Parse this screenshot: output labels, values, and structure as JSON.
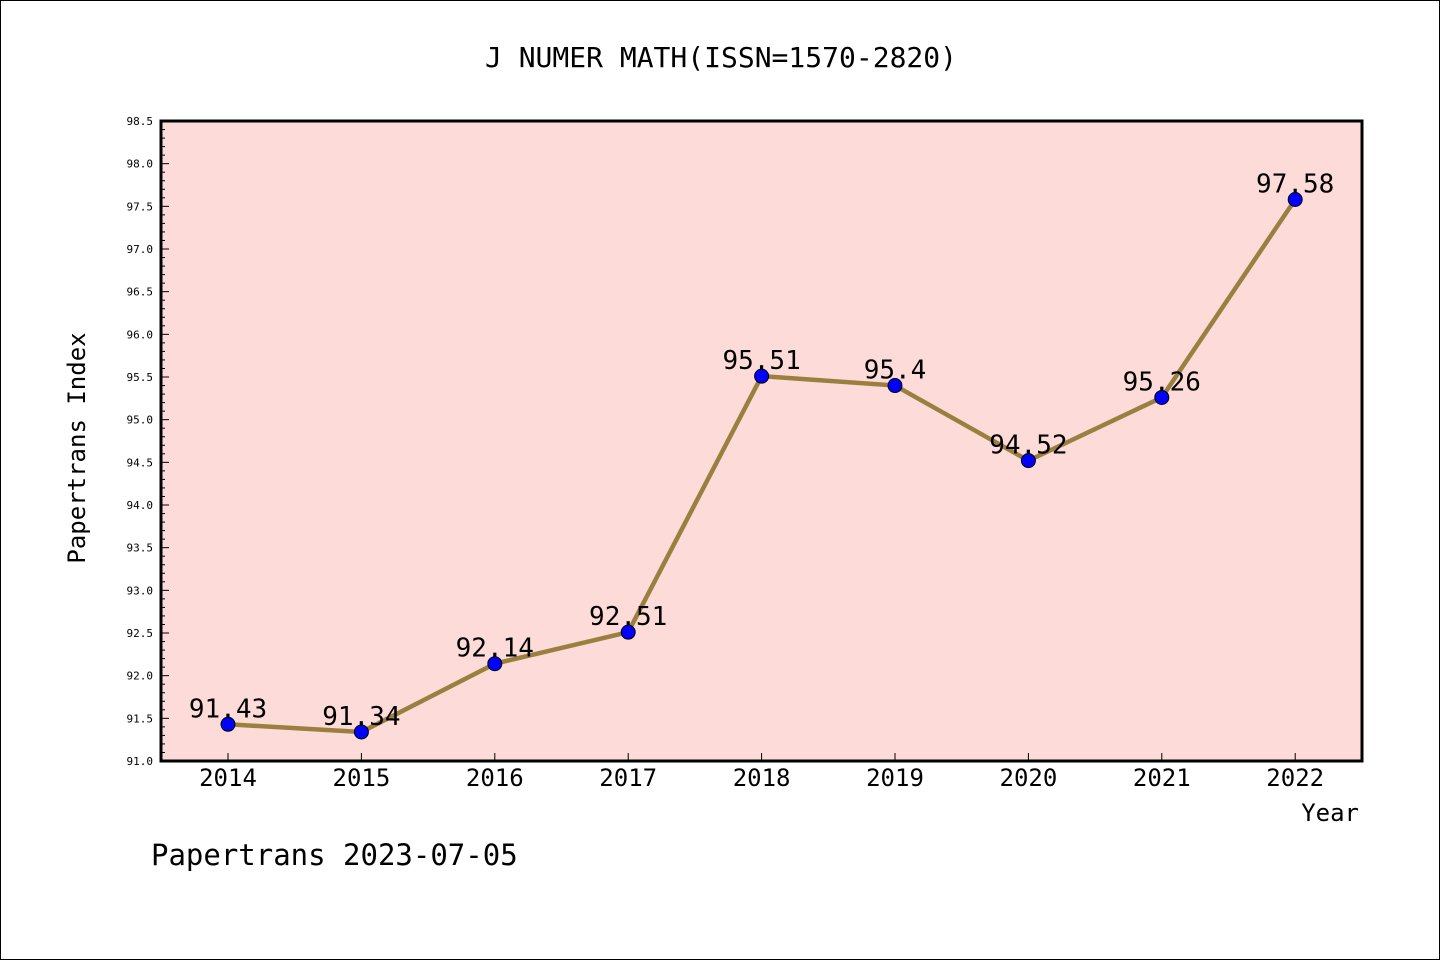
{
  "chart_data": {
    "type": "line",
    "title": "J NUMER MATH(ISSN=1570-2820)",
    "xlabel": "Year",
    "ylabel": "Papertrans Index",
    "categories": [
      "2014",
      "2015",
      "2016",
      "2017",
      "2018",
      "2019",
      "2020",
      "2021",
      "2022"
    ],
    "series": [
      {
        "values": [
          91.43,
          91.34,
          92.14,
          92.51,
          95.51,
          95.4,
          94.52,
          95.26,
          97.58
        ],
        "labels": [
          "91.43",
          "91.34",
          "92.14",
          "92.51",
          "95.51",
          "95.4",
          "94.52",
          "95.26",
          "97.58"
        ]
      }
    ],
    "ylim": [
      91.0,
      98.5
    ],
    "yticks": [
      "91.0",
      "91.5",
      "92.0",
      "92.5",
      "93.0",
      "93.5",
      "94.0",
      "94.5",
      "95.0",
      "95.5",
      "96.0",
      "96.5",
      "97.0",
      "97.5",
      "98.0",
      "98.5"
    ],
    "grid": false,
    "footer": "Papertrans 2023-07-05",
    "colors": {
      "plot_background": "#fddbd8",
      "line": "#9b7f3f",
      "marker": "#0000ff"
    }
  }
}
